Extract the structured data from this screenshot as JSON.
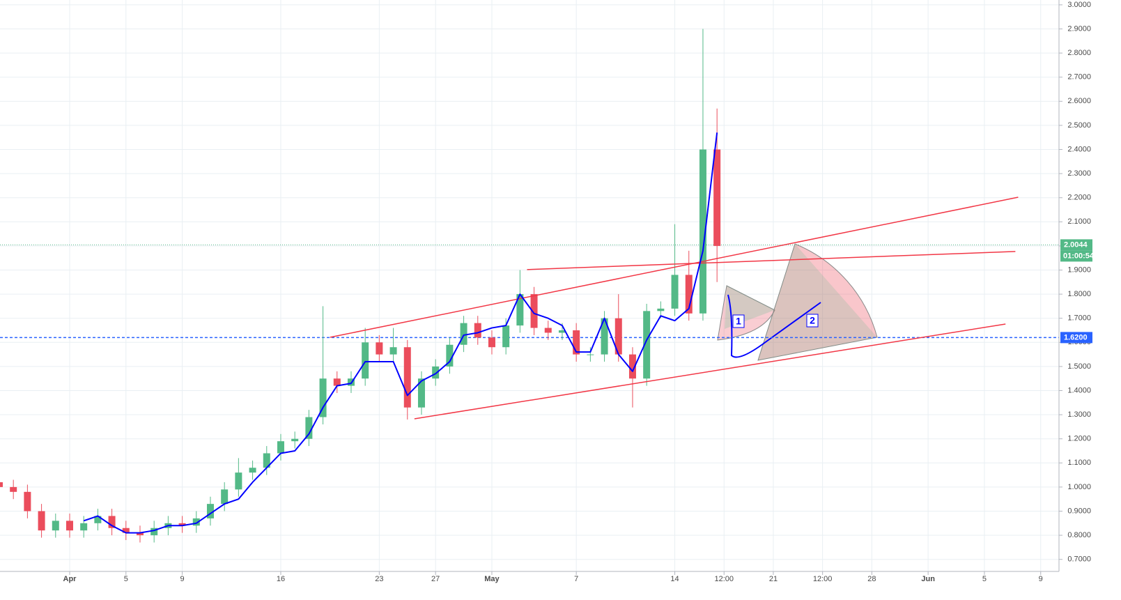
{
  "chart_data": {
    "type": "candlestick",
    "x": [
      -5,
      -4,
      -3,
      -2,
      -1,
      0,
      1,
      2,
      3,
      4,
      5,
      6,
      7,
      8,
      9,
      10,
      11,
      12,
      13,
      14,
      15,
      16,
      17,
      18,
      19,
      20,
      21,
      22,
      23,
      24,
      25,
      26,
      27,
      28,
      29,
      30,
      31,
      32,
      33,
      34,
      35,
      36,
      37,
      38,
      39,
      40,
      41,
      42,
      43,
      44,
      45,
      46
    ],
    "open": [
      1.02,
      1.0,
      0.98,
      0.9,
      0.82,
      0.86,
      0.82,
      0.85,
      0.88,
      0.83,
      0.81,
      0.8,
      0.83,
      0.85,
      0.84,
      0.87,
      0.93,
      0.99,
      1.06,
      1.08,
      1.14,
      1.19,
      1.2,
      1.29,
      1.45,
      1.42,
      1.45,
      1.6,
      1.55,
      1.58,
      1.33,
      1.45,
      1.5,
      1.59,
      1.68,
      1.62,
      1.58,
      1.67,
      1.8,
      1.66,
      1.64,
      1.65,
      1.55,
      1.55,
      1.7,
      1.55,
      1.45,
      1.73,
      1.74,
      1.88,
      1.72,
      2.4
    ],
    "high": [
      1.05,
      1.03,
      1.01,
      0.93,
      0.89,
      0.89,
      0.88,
      0.91,
      0.91,
      0.86,
      0.84,
      0.86,
      0.88,
      0.88,
      0.9,
      0.96,
      1.02,
      1.12,
      1.11,
      1.17,
      1.22,
      1.23,
      1.32,
      1.75,
      1.48,
      1.48,
      1.66,
      1.63,
      1.66,
      1.61,
      1.48,
      1.53,
      1.62,
      1.71,
      1.71,
      1.65,
      1.7,
      1.9,
      1.83,
      1.69,
      1.68,
      1.68,
      1.58,
      1.73,
      1.8,
      1.58,
      1.76,
      1.77,
      2.09,
      1.98,
      2.9,
      2.57
    ],
    "low": [
      0.97,
      0.95,
      0.87,
      0.79,
      0.79,
      0.79,
      0.79,
      0.82,
      0.8,
      0.78,
      0.77,
      0.77,
      0.8,
      0.81,
      0.81,
      0.84,
      0.9,
      0.96,
      1.03,
      1.05,
      1.11,
      1.16,
      1.17,
      1.26,
      1.39,
      1.39,
      1.42,
      1.52,
      1.52,
      1.28,
      1.3,
      1.42,
      1.47,
      1.56,
      1.59,
      1.55,
      1.55,
      1.64,
      1.63,
      1.61,
      1.61,
      1.52,
      1.52,
      1.52,
      1.52,
      1.33,
      1.42,
      1.7,
      1.71,
      1.69,
      1.69,
      1.85
    ],
    "close": [
      1.0,
      0.98,
      0.9,
      0.82,
      0.86,
      0.82,
      0.85,
      0.88,
      0.83,
      0.81,
      0.8,
      0.83,
      0.85,
      0.84,
      0.87,
      0.93,
      0.99,
      1.06,
      1.08,
      1.14,
      1.19,
      1.2,
      1.29,
      1.45,
      1.42,
      1.45,
      1.6,
      1.55,
      1.58,
      1.33,
      1.45,
      1.5,
      1.59,
      1.68,
      1.62,
      1.58,
      1.67,
      1.8,
      1.66,
      1.64,
      1.65,
      1.55,
      1.55,
      1.7,
      1.55,
      1.45,
      1.73,
      1.74,
      1.88,
      1.72,
      2.4,
      2.0
    ],
    "up_color": "#53b987",
    "down_color": "#eb4d5c",
    "average": {
      "color": "#0000ff",
      "values": [
        null,
        null,
        null,
        null,
        null,
        null,
        0.86,
        0.88,
        0.84,
        0.81,
        0.81,
        0.82,
        0.84,
        0.84,
        0.85,
        0.89,
        0.93,
        0.95,
        1.02,
        1.08,
        1.14,
        1.15,
        1.22,
        1.33,
        1.42,
        1.43,
        1.52,
        1.52,
        1.52,
        1.38,
        1.44,
        1.47,
        1.52,
        1.63,
        1.64,
        1.66,
        1.67,
        1.8,
        1.72,
        1.7,
        1.67,
        1.56,
        1.56,
        1.7,
        1.55,
        1.48,
        1.61,
        1.71,
        1.69,
        1.74,
        1.98,
        2.47
      ]
    },
    "trendlines": [
      {
        "color": "#f23645",
        "x": [
          18.5,
          67.4
        ],
        "y": [
          1.621,
          2.202
        ]
      },
      {
        "color": "#f23645",
        "x": [
          32.5,
          67.2
        ],
        "y": [
          1.902,
          1.977
        ]
      },
      {
        "color": "#f23645",
        "x": [
          24.5,
          66.5
        ],
        "y": [
          1.283,
          1.676
        ]
      }
    ],
    "last_price": {
      "value": 2.0044,
      "label": "2.0044"
    },
    "countdown": "01:00:54",
    "level": {
      "value": 1.62,
      "label": "1.6200"
    },
    "annotations": [
      "1",
      "2"
    ],
    "xlim": [
      -4.95,
      70.3
    ],
    "ylim": [
      0.65,
      3.02
    ],
    "grid": true,
    "xticks": [
      {
        "value": 0,
        "label": "Apr"
      },
      {
        "value": 4,
        "label": "5"
      },
      {
        "value": 8,
        "label": "9"
      },
      {
        "value": 15,
        "label": "16"
      },
      {
        "value": 22,
        "label": "23"
      },
      {
        "value": 26,
        "label": "27"
      },
      {
        "value": 30,
        "label": "May"
      },
      {
        "value": 36,
        "label": "7"
      },
      {
        "value": 43,
        "label": "14"
      },
      {
        "value": 46.5,
        "label": "12:00"
      },
      {
        "value": 50,
        "label": "21"
      },
      {
        "value": 53.5,
        "label": "12:00"
      },
      {
        "value": 57,
        "label": "28"
      },
      {
        "value": 61,
        "label": "Jun"
      },
      {
        "value": 65,
        "label": "5"
      },
      {
        "value": 69,
        "label": "9"
      }
    ],
    "yticks": [
      {
        "value": 0.7,
        "label": "0.7000"
      },
      {
        "value": 0.8,
        "label": "0.8000"
      },
      {
        "value": 0.9,
        "label": "0.9000"
      },
      {
        "value": 1.0,
        "label": "1.0000"
      },
      {
        "value": 1.1,
        "label": "1.1000"
      },
      {
        "value": 1.2,
        "label": "1.2000"
      },
      {
        "value": 1.3,
        "label": "1.3000"
      },
      {
        "value": 1.4,
        "label": "1.4000"
      },
      {
        "value": 1.5,
        "label": "1.5000"
      },
      {
        "value": 1.6,
        "label": "1.6000"
      },
      {
        "value": 1.7,
        "label": "1.7000"
      },
      {
        "value": 1.8,
        "label": "1.8000"
      },
      {
        "value": 1.9,
        "label": "1.9000"
      },
      {
        "value": 2.0,
        "label": "2.0000"
      },
      {
        "value": 2.1,
        "label": "2.1000"
      },
      {
        "value": 2.2,
        "label": "2.2000"
      },
      {
        "value": 2.3,
        "label": "2.3000"
      },
      {
        "value": 2.4,
        "label": "2.4000"
      },
      {
        "value": 2.5,
        "label": "2.5000"
      },
      {
        "value": 2.6,
        "label": "2.6000"
      },
      {
        "value": 2.7,
        "label": "2.7000"
      },
      {
        "value": 2.8,
        "label": "2.8000"
      },
      {
        "value": 2.9,
        "label": "2.9000"
      },
      {
        "value": 3.0,
        "label": "3.0000"
      }
    ]
  }
}
